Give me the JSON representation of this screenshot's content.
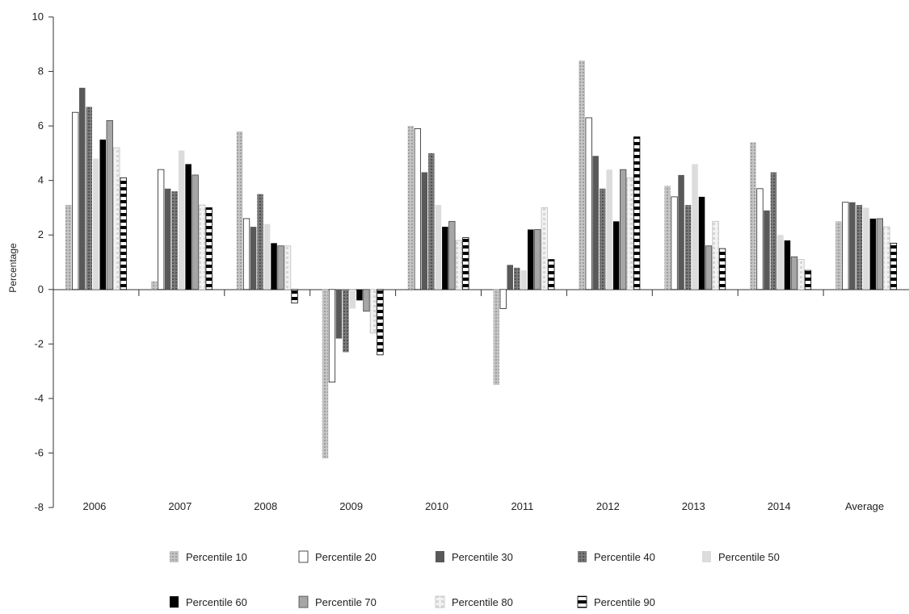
{
  "chart_data": {
    "type": "bar",
    "title": "",
    "xlabel": "",
    "ylabel": "Percentage",
    "ylim": [
      -8,
      10
    ],
    "yticks": [
      "10",
      "8",
      "6",
      "4",
      "2",
      "0",
      "-2",
      "-4",
      "-6",
      "-8"
    ],
    "ytick_values": [
      10,
      8,
      6,
      4,
      2,
      0,
      -2,
      -4,
      -6,
      -8
    ],
    "grid": false,
    "legend_position": "bottom",
    "categories": [
      "2006",
      "2007",
      "2008",
      "2009",
      "2010",
      "2011",
      "2012",
      "2013",
      "2014",
      "Average"
    ],
    "series": [
      {
        "name": "Percentile 10",
        "style": "dotted-gray",
        "values": [
          3.1,
          0.3,
          5.8,
          -6.2,
          6.0,
          -3.5,
          8.4,
          3.8,
          5.4,
          2.5
        ]
      },
      {
        "name": "Percentile 20",
        "style": "white",
        "values": [
          6.5,
          4.4,
          2.6,
          -3.4,
          5.9,
          -0.7,
          6.3,
          3.4,
          3.7,
          3.2
        ]
      },
      {
        "name": "Percentile 30",
        "style": "dark-gray",
        "values": [
          7.4,
          3.7,
          2.3,
          -1.8,
          4.3,
          0.9,
          4.9,
          4.2,
          2.9,
          3.2
        ]
      },
      {
        "name": "Percentile 40",
        "style": "dotted-dark",
        "values": [
          6.7,
          3.6,
          3.5,
          -2.3,
          5.0,
          0.8,
          3.7,
          3.1,
          4.3,
          3.1
        ]
      },
      {
        "name": "Percentile 50",
        "style": "light-gray",
        "values": [
          4.8,
          5.1,
          2.4,
          -0.7,
          3.1,
          0.7,
          4.4,
          4.6,
          2.0,
          3.0
        ]
      },
      {
        "name": "Percentile 60",
        "style": "black",
        "values": [
          5.5,
          4.6,
          1.7,
          -0.4,
          2.3,
          2.2,
          2.5,
          3.4,
          1.8,
          2.6
        ]
      },
      {
        "name": "Percentile 70",
        "style": "medium-gray",
        "values": [
          6.2,
          4.2,
          1.6,
          -0.8,
          2.5,
          2.2,
          4.4,
          1.6,
          1.2,
          2.6
        ]
      },
      {
        "name": "Percentile 80",
        "style": "dashed-light",
        "values": [
          5.2,
          3.1,
          1.6,
          -1.6,
          1.8,
          3.0,
          4.1,
          2.5,
          1.1,
          2.3
        ]
      },
      {
        "name": "Percentile 90",
        "style": "checker",
        "values": [
          4.1,
          3.0,
          -0.5,
          -2.4,
          1.9,
          1.1,
          5.6,
          1.5,
          0.7,
          1.7
        ]
      }
    ]
  }
}
